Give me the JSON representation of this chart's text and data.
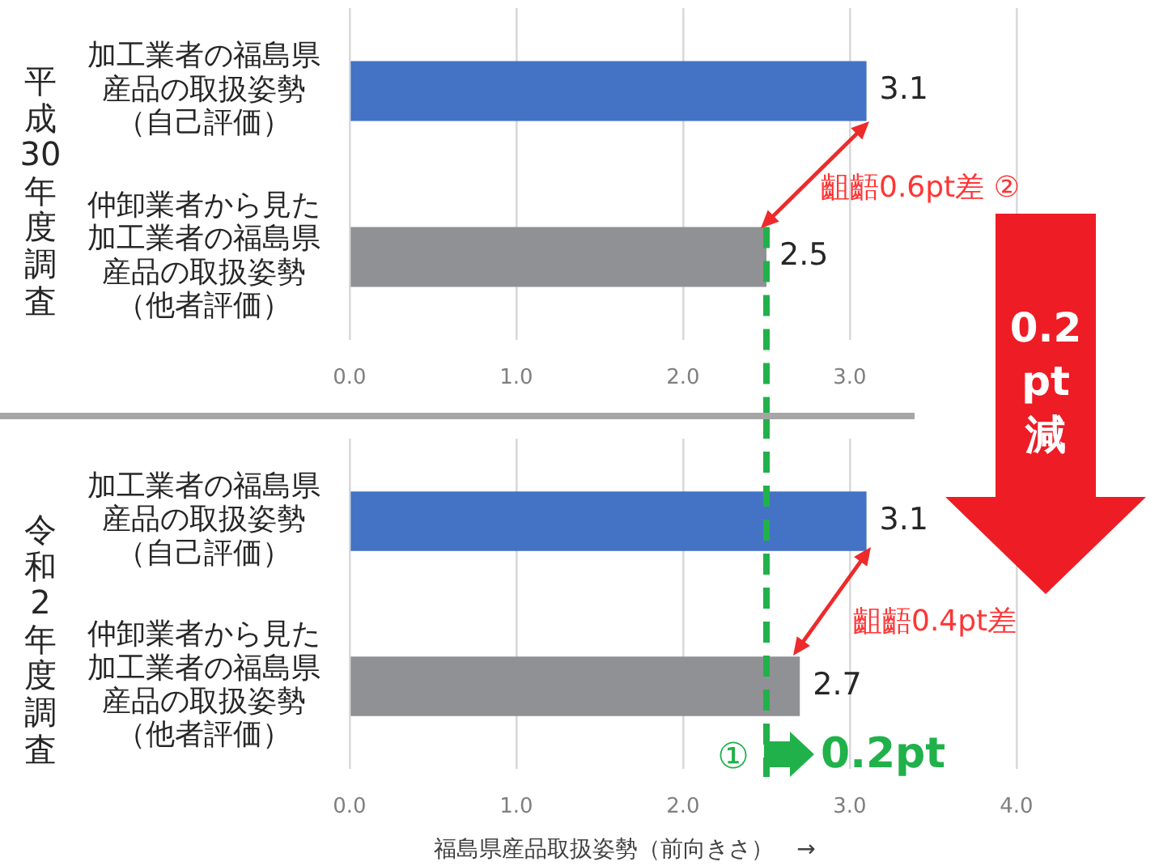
{
  "chart_data": [
    {
      "type": "bar",
      "orientation": "horizontal",
      "ylabel": "平成30年度調査",
      "categories": [
        "加工業者の福島県産品の取扱姿勢（自己評価）",
        "仲卸業者から見た加工業者の福島県産品の取扱姿勢（他者評価）"
      ],
      "values": [
        3.1,
        2.5
      ],
      "colors": [
        "#4472c4",
        "#909195"
      ],
      "data_labels": true,
      "xlim": [
        0,
        4
      ],
      "xticks": [
        {
          "value": 0,
          "label": "0.0"
        },
        {
          "value": 1,
          "label": "1.0"
        },
        {
          "value": 2,
          "label": "2.0"
        },
        {
          "value": 3,
          "label": "3.0"
        },
        {
          "value": 4,
          "label": null
        }
      ],
      "grid": "x",
      "ref_lines": [
        {
          "axis": "x",
          "value": 2.5,
          "color": "#21b14b",
          "line_style": "dashed"
        }
      ],
      "annotations": [
        "齟齬0.6pt差 ②",
        "0.2\npt\n減"
      ]
    },
    {
      "type": "bar",
      "orientation": "horizontal",
      "ylabel": "令和2年度調査",
      "xlabel": "福島県産品取扱姿勢（前向きさ）　→",
      "categories": [
        "加工業者の福島県産品の取扱姿勢（自己評価）",
        "仲卸業者から見た加工業者の福島県産品の取扱姿勢（他者評価）"
      ],
      "values": [
        3.1,
        2.7
      ],
      "colors": [
        "#4472c4",
        "#909195"
      ],
      "data_labels": true,
      "xlim": [
        0,
        4
      ],
      "xticks": [
        {
          "value": 0,
          "label": "0.0"
        },
        {
          "value": 1,
          "label": "1.0"
        },
        {
          "value": 2,
          "label": "2.0"
        },
        {
          "value": 3,
          "label": "3.0"
        },
        {
          "value": 4,
          "label": "4.0"
        }
      ],
      "grid": "x",
      "ref_lines": [
        {
          "axis": "x",
          "value": 2.5,
          "color": "#21b14b",
          "line_style": "dashed"
        }
      ],
      "annotations": [
        "齟齬0.4pt差",
        "①",
        "0.2pt"
      ]
    }
  ]
}
